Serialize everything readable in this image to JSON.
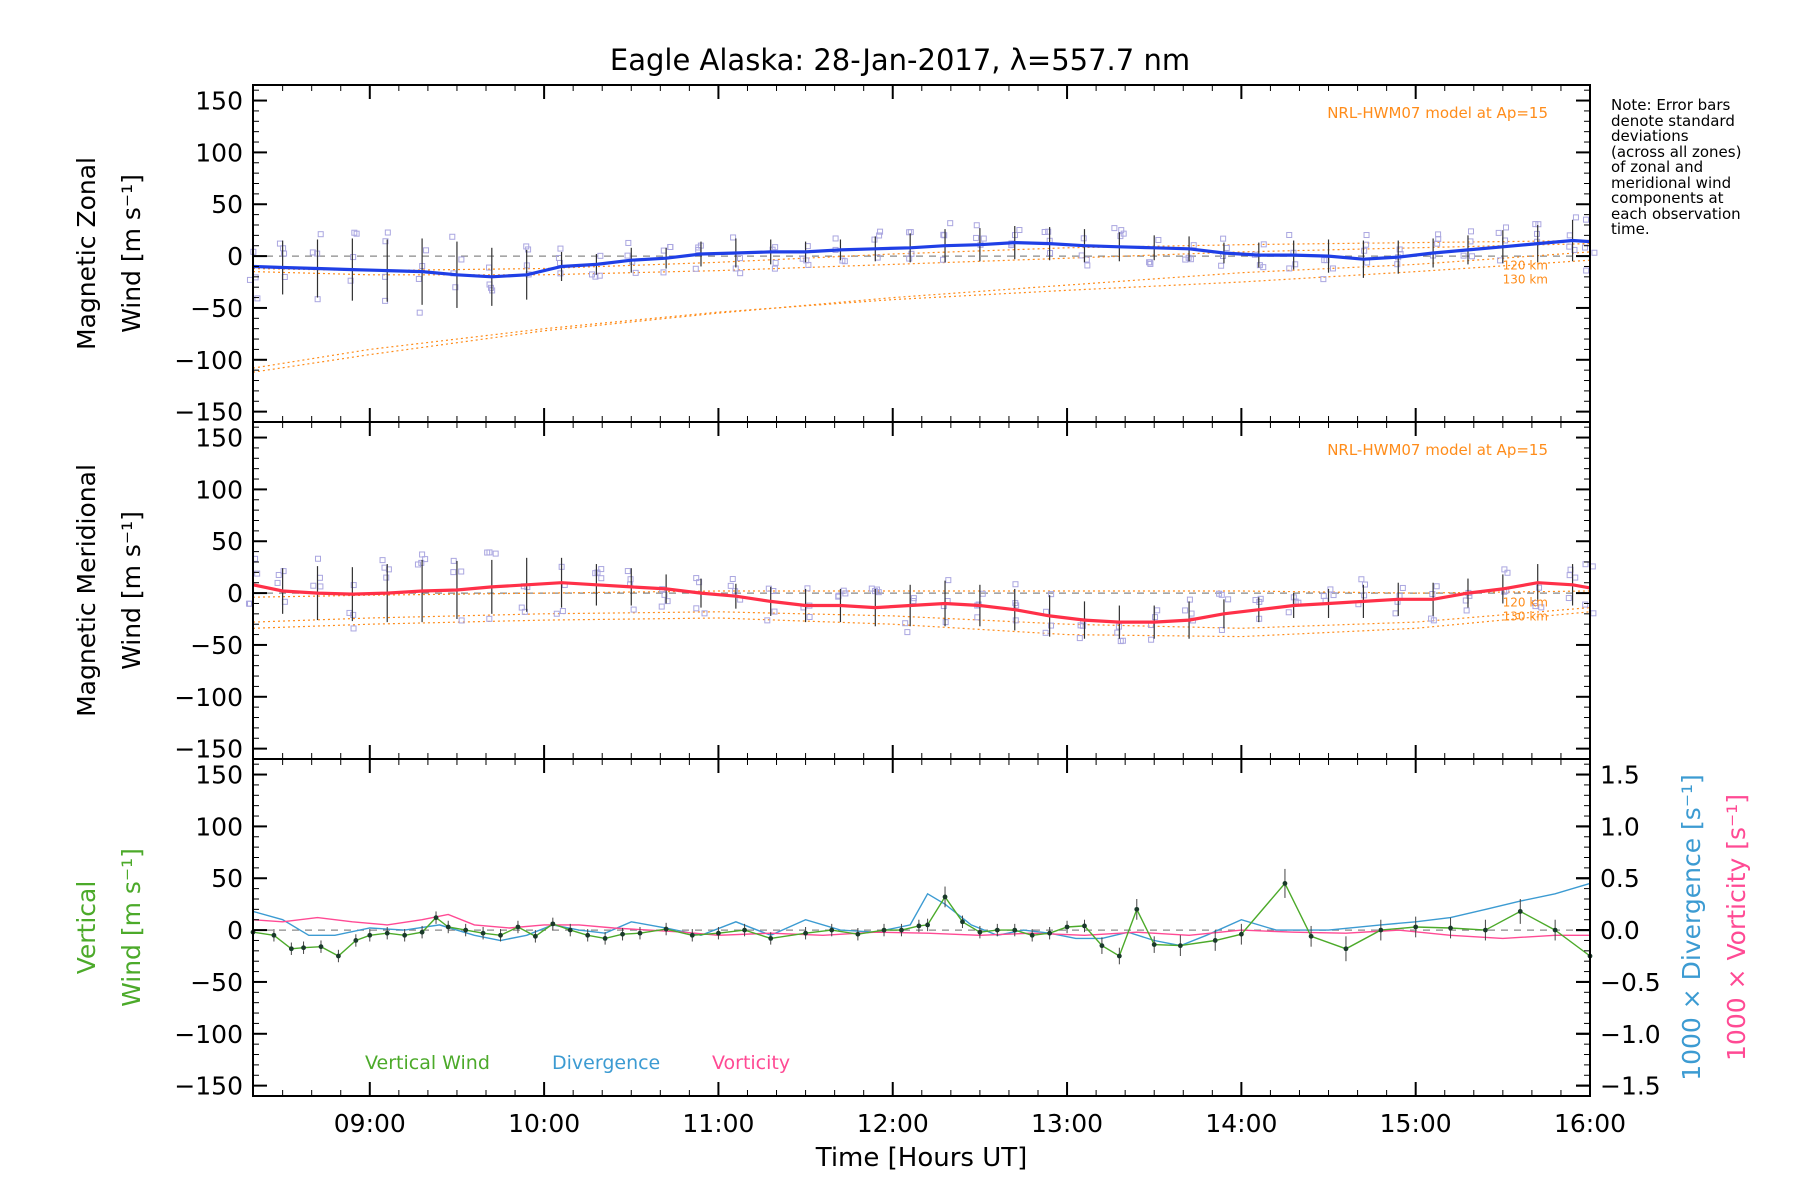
{
  "title": "Eagle Alaska: 28-Jan-2017, λ=557.7 nm",
  "note": "Note: Error bars\ndenote standard\ndeviations\n(across all zones)\nof zonal and\nmeridional wind\ncomponents at\neach observation\ntime.",
  "colors": {
    "zonal": "#1f3fe6",
    "zonal_light": "#5aaaf0",
    "meridional": "#ff3048",
    "model": "#ff8c1a",
    "vertical": "#4caa2a",
    "divergence": "#3c9bd2",
    "vorticity": "#ff4a94",
    "scatter": "#aaa6e0",
    "errorbar": "#303030",
    "axis": "#000000"
  },
  "chart_data": [
    {
      "type": "line",
      "panel": "zonal",
      "ylabel_line1": "Magnetic Zonal",
      "ylabel_line2": "Wind [m s⁻¹]",
      "ylim": [
        -160,
        165
      ],
      "xlim": [
        8.33,
        16.0
      ],
      "yticks": [
        -150,
        -100,
        -50,
        0,
        50,
        100,
        150
      ],
      "ytick_labels": [
        "−150",
        "−100",
        "−50",
        "0",
        "50",
        "100",
        "150"
      ],
      "model_label": "NRL-HWM07 model at Ap=15",
      "model_levels": [
        "120 km",
        "130 km"
      ],
      "series": [
        {
          "role": "wind",
          "x": [
            8.33,
            8.5,
            8.7,
            8.9,
            9.1,
            9.3,
            9.5,
            9.7,
            9.9,
            10.1,
            10.3,
            10.5,
            10.7,
            10.9,
            11.1,
            11.3,
            11.5,
            11.7,
            11.9,
            12.1,
            12.3,
            12.5,
            12.7,
            12.9,
            13.1,
            13.3,
            13.5,
            13.7,
            13.9,
            14.1,
            14.3,
            14.5,
            14.7,
            14.9,
            15.1,
            15.3,
            15.5,
            15.7,
            15.9,
            16.0
          ],
          "y": [
            -10,
            -11,
            -12,
            -13,
            -14,
            -15,
            -18,
            -20,
            -18,
            -10,
            -8,
            -4,
            -2,
            2,
            3,
            4,
            4,
            6,
            7,
            8,
            10,
            11,
            13,
            12,
            10,
            9,
            8,
            7,
            3,
            1,
            1,
            0,
            -3,
            -1,
            3,
            6,
            9,
            12,
            15,
            14
          ],
          "err": [
            22,
            26,
            28,
            30,
            30,
            32,
            32,
            28,
            24,
            14,
            10,
            12,
            10,
            12,
            14,
            12,
            10,
            10,
            12,
            14,
            16,
            16,
            16,
            16,
            16,
            14,
            12,
            12,
            10,
            12,
            14,
            16,
            18,
            16,
            14,
            14,
            16,
            18,
            20,
            20
          ]
        },
        {
          "role": "model",
          "label": "120 km",
          "x": [
            8.33,
            9.0,
            10.0,
            11.0,
            12.0,
            13.0,
            14.0,
            14.5,
            15.0,
            15.5,
            16.0
          ],
          "y": [
            -12,
            -14,
            -12,
            -6,
            2,
            8,
            11,
            12,
            13,
            14,
            15
          ]
        },
        {
          "role": "model",
          "label": "130 km",
          "x": [
            8.33,
            9.0,
            10.0,
            11.0,
            12.0,
            13.0,
            14.0,
            15.0,
            15.5,
            16.0
          ],
          "y": [
            -112,
            -95,
            -72,
            -55,
            -40,
            -28,
            -16,
            -8,
            -2,
            4
          ]
        },
        {
          "role": "model",
          "label": "inner",
          "x": [
            8.33,
            9.0,
            10.0,
            11.0,
            12.0,
            13.0,
            14.0,
            15.0,
            15.5,
            16.0
          ],
          "y": [
            -15,
            -18,
            -18,
            -14,
            -8,
            -2,
            4,
            8,
            10,
            12
          ]
        },
        {
          "role": "model",
          "label": "lower",
          "x": [
            8.33,
            9.0,
            10.0,
            11.0,
            12.0,
            13.0,
            14.0,
            15.0,
            16.0
          ],
          "y": [
            -108,
            -90,
            -70,
            -54,
            -42,
            -33,
            -25,
            -15,
            -4
          ]
        }
      ]
    },
    {
      "type": "line",
      "panel": "meridional",
      "ylabel_line1": "Magnetic Meridional",
      "ylabel_line2": "Wind [m s⁻¹]",
      "ylim": [
        -160,
        165
      ],
      "xlim": [
        8.33,
        16.0
      ],
      "yticks": [
        -150,
        -100,
        -50,
        0,
        50,
        100,
        150
      ],
      "ytick_labels": [
        "−150",
        "−100",
        "−50",
        "0",
        "50",
        "100",
        "150"
      ],
      "model_label": "NRL-HWM07 model at Ap=15",
      "model_levels": [
        "120 km",
        "130 km"
      ],
      "series": [
        {
          "role": "wind",
          "x": [
            8.33,
            8.5,
            8.7,
            8.9,
            9.1,
            9.3,
            9.5,
            9.7,
            9.9,
            10.1,
            10.3,
            10.5,
            10.7,
            10.9,
            11.1,
            11.3,
            11.5,
            11.7,
            11.9,
            12.1,
            12.3,
            12.5,
            12.7,
            12.9,
            13.1,
            13.3,
            13.5,
            13.7,
            13.9,
            14.1,
            14.3,
            14.5,
            14.7,
            14.9,
            15.1,
            15.3,
            15.5,
            15.7,
            15.9,
            16.0
          ],
          "y": [
            8,
            2,
            0,
            -1,
            0,
            2,
            3,
            6,
            8,
            10,
            8,
            6,
            4,
            0,
            -3,
            -8,
            -12,
            -12,
            -14,
            -12,
            -10,
            -12,
            -16,
            -22,
            -26,
            -28,
            -28,
            -26,
            -20,
            -16,
            -12,
            -10,
            -8,
            -6,
            -6,
            0,
            4,
            10,
            8,
            5
          ],
          "err": [
            20,
            22,
            26,
            26,
            28,
            30,
            28,
            26,
            26,
            24,
            20,
            18,
            14,
            14,
            12,
            14,
            16,
            16,
            18,
            20,
            22,
            20,
            20,
            20,
            18,
            16,
            16,
            18,
            14,
            12,
            12,
            14,
            16,
            16,
            16,
            14,
            14,
            18,
            20,
            18
          ]
        },
        {
          "role": "model",
          "label": "120 km",
          "x": [
            8.33,
            9.0,
            10.0,
            11.0,
            12.0,
            13.0,
            14.0,
            15.0,
            16.0
          ],
          "y": [
            -4,
            -2,
            0,
            2,
            2,
            2,
            2,
            0,
            2
          ]
        },
        {
          "role": "model",
          "label": "130 km",
          "x": [
            8.33,
            9.0,
            10.0,
            11.0,
            12.0,
            13.0,
            14.0,
            15.0,
            16.0
          ],
          "y": [
            -28,
            -24,
            -20,
            -18,
            -22,
            -30,
            -34,
            -28,
            -14
          ]
        },
        {
          "role": "model",
          "label": "lower",
          "x": [
            8.33,
            9.0,
            10.0,
            11.0,
            12.0,
            13.0,
            14.0,
            15.0,
            16.0
          ],
          "y": [
            -34,
            -30,
            -26,
            -24,
            -30,
            -40,
            -42,
            -34,
            -18
          ]
        }
      ]
    },
    {
      "type": "line",
      "panel": "vertical",
      "ylabel_line1": "Vertical",
      "ylabel_line2": "Wind [m s⁻¹]",
      "ylim": [
        -160,
        165
      ],
      "xlim": [
        8.33,
        16.0
      ],
      "yticks": [
        -150,
        -100,
        -50,
        0,
        50,
        100,
        150
      ],
      "ytick_labels": [
        "−150",
        "−100",
        "−50",
        "0",
        "50",
        "100",
        "150"
      ],
      "y2label_div": "1000 × Divergence [s⁻¹]",
      "y2label_vort": "1000 × Vorticity [s⁻¹]",
      "y2lim": [
        -1.6,
        1.65
      ],
      "y2ticks": [
        -1.5,
        -1.0,
        -0.5,
        0.0,
        0.5,
        1.0,
        1.5
      ],
      "y2tick_labels": [
        "−1.5",
        "−1.0",
        "−0.5",
        "0.0",
        "0.5",
        "1.0",
        "1.5"
      ],
      "xlabel": "Time [Hours UT]",
      "xticks": [
        9,
        10,
        11,
        12,
        13,
        14,
        15,
        16
      ],
      "xtick_labels": [
        "09:00",
        "10:00",
        "11:00",
        "12:00",
        "13:00",
        "14:00",
        "15:00",
        "16:00"
      ],
      "legend": [
        {
          "name": "Vertical Wind",
          "color": "#4caa2a"
        },
        {
          "name": "Divergence",
          "color": "#3c9bd2"
        },
        {
          "name": "Vorticity",
          "color": "#ff4a94"
        }
      ],
      "series": [
        {
          "role": "vertical",
          "x": [
            8.33,
            8.45,
            8.55,
            8.62,
            8.72,
            8.82,
            8.92,
            9.0,
            9.1,
            9.2,
            9.3,
            9.38,
            9.45,
            9.55,
            9.65,
            9.75,
            9.85,
            9.95,
            10.05,
            10.15,
            10.25,
            10.35,
            10.45,
            10.55,
            10.7,
            10.85,
            11.0,
            11.15,
            11.3,
            11.5,
            11.65,
            11.8,
            11.95,
            12.05,
            12.15,
            12.2,
            12.3,
            12.4,
            12.5,
            12.6,
            12.7,
            12.8,
            12.9,
            13.0,
            13.1,
            13.2,
            13.3,
            13.4,
            13.5,
            13.65,
            13.85,
            14.0,
            14.25,
            14.4,
            14.6,
            14.8,
            15.0,
            15.2,
            15.4,
            15.6,
            15.8,
            16.0
          ],
          "y": [
            -2,
            -5,
            -18,
            -17,
            -16,
            -25,
            -10,
            -5,
            -3,
            -5,
            -2,
            12,
            3,
            0,
            -3,
            -5,
            3,
            -6,
            6,
            0,
            -5,
            -8,
            -4,
            -3,
            1,
            -5,
            -3,
            0,
            -8,
            -3,
            0,
            -4,
            0,
            0,
            4,
            5,
            32,
            8,
            -2,
            0,
            0,
            -5,
            -3,
            3,
            4,
            -15,
            -25,
            20,
            -14,
            -15,
            -10,
            -4,
            45,
            -6,
            -18,
            0,
            3,
            2,
            0,
            18,
            0,
            -25
          ],
          "err": [
            6,
            6,
            6,
            6,
            6,
            6,
            6,
            6,
            6,
            6,
            6,
            6,
            6,
            6,
            6,
            6,
            6,
            6,
            6,
            6,
            6,
            6,
            6,
            6,
            6,
            6,
            6,
            6,
            6,
            6,
            6,
            6,
            6,
            6,
            6,
            6,
            10,
            6,
            6,
            6,
            6,
            6,
            6,
            6,
            6,
            8,
            8,
            10,
            8,
            10,
            10,
            10,
            14,
            10,
            12,
            10,
            10,
            10,
            10,
            12,
            10,
            12
          ]
        },
        {
          "role": "divergence",
          "x": [
            8.33,
            8.5,
            8.65,
            8.8,
            9.0,
            9.2,
            9.4,
            9.6,
            9.75,
            9.9,
            10.05,
            10.2,
            10.35,
            10.5,
            10.7,
            10.9,
            11.1,
            11.3,
            11.5,
            11.7,
            11.9,
            12.1,
            12.2,
            12.3,
            12.45,
            12.6,
            12.75,
            12.9,
            13.05,
            13.2,
            13.35,
            13.5,
            13.65,
            13.8,
            14.0,
            14.2,
            14.5,
            14.8,
            15.0,
            15.2,
            15.4,
            15.6,
            15.8,
            16.0
          ],
          "y": [
            0.18,
            0.1,
            -0.05,
            -0.05,
            0.02,
            0.0,
            0.05,
            -0.05,
            -0.1,
            -0.05,
            0.05,
            0.0,
            -0.03,
            0.08,
            0.02,
            -0.05,
            0.08,
            -0.05,
            0.1,
            0.0,
            -0.02,
            0.05,
            0.35,
            0.25,
            0.05,
            -0.05,
            0.0,
            -0.03,
            -0.08,
            -0.08,
            -0.02,
            -0.1,
            -0.15,
            -0.05,
            0.1,
            0.0,
            0.0,
            0.05,
            0.08,
            0.12,
            0.2,
            0.28,
            0.35,
            0.45
          ]
        },
        {
          "role": "vorticity",
          "x": [
            8.33,
            8.5,
            8.7,
            8.9,
            9.1,
            9.3,
            9.45,
            9.6,
            9.8,
            10.0,
            10.2,
            10.4,
            10.6,
            10.8,
            11.0,
            11.3,
            11.6,
            11.9,
            12.2,
            12.5,
            12.8,
            13.1,
            13.4,
            13.7,
            14.0,
            14.3,
            14.6,
            14.9,
            15.2,
            15.5,
            15.8,
            16.0
          ],
          "y": [
            0.1,
            0.08,
            0.12,
            0.08,
            0.05,
            0.1,
            0.15,
            0.05,
            0.02,
            0.05,
            0.05,
            0.02,
            0.0,
            -0.02,
            -0.05,
            -0.03,
            -0.05,
            -0.02,
            -0.03,
            -0.05,
            -0.03,
            -0.05,
            -0.02,
            -0.05,
            0.0,
            -0.02,
            -0.03,
            0.0,
            -0.05,
            -0.08,
            -0.05,
            -0.05
          ]
        }
      ]
    }
  ]
}
